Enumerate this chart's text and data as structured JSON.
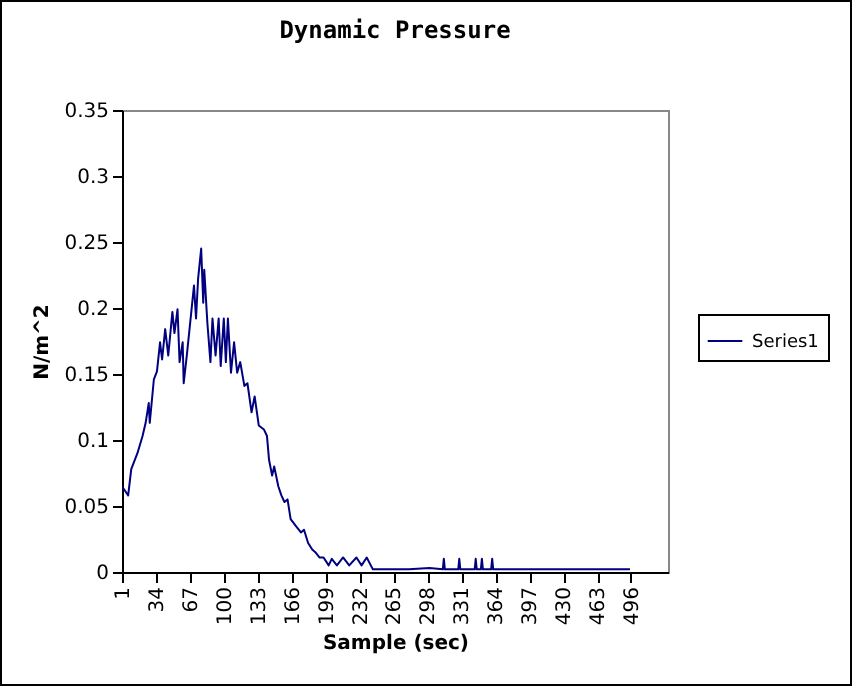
{
  "chart_data": {
    "type": "line",
    "title": "Dynamic Pressure",
    "xlabel": "Sample (sec)",
    "ylabel": "N/m^2",
    "xlim": [
      1,
      532
    ],
    "xticks": [
      1,
      34,
      67,
      100,
      133,
      166,
      199,
      232,
      265,
      298,
      331,
      364,
      397,
      430,
      463,
      496
    ],
    "ylim": [
      0,
      0.35
    ],
    "yticks": [
      0,
      0.05,
      0.1,
      0.15,
      0.2,
      0.25,
      0.3,
      0.35
    ],
    "grid": false,
    "legend": "right",
    "line_style": "solid",
    "marker": "none",
    "series": [
      {
        "name": "Series1",
        "color": "#000080",
        "x": [
          1,
          7,
          10,
          16,
          21,
          24,
          27,
          28,
          32,
          35,
          38,
          40,
          43,
          46,
          50,
          52,
          55,
          57,
          60,
          61,
          64,
          68,
          71,
          73,
          75,
          78,
          80,
          81,
          84,
          87,
          89,
          92,
          95,
          97,
          100,
          102,
          104,
          107,
          110,
          113,
          116,
          120,
          123,
          127,
          130,
          134,
          139,
          142,
          144,
          147,
          149,
          153,
          156,
          159,
          162,
          165,
          170,
          175,
          178,
          182,
          186,
          189,
          193,
          197,
          202,
          205,
          210,
          216,
          222,
          229,
          234,
          239,
          245,
          250,
          280,
          300,
          313,
          314,
          315,
          328,
          329,
          330,
          344,
          345,
          346,
          350,
          351,
          352,
          360,
          361,
          362,
          400,
          450,
          495
        ],
        "values": [
          0.065,
          0.058,
          0.078,
          0.09,
          0.103,
          0.113,
          0.128,
          0.113,
          0.146,
          0.152,
          0.174,
          0.161,
          0.184,
          0.164,
          0.197,
          0.181,
          0.199,
          0.159,
          0.174,
          0.143,
          0.164,
          0.194,
          0.217,
          0.192,
          0.222,
          0.245,
          0.204,
          0.229,
          0.189,
          0.159,
          0.192,
          0.164,
          0.192,
          0.156,
          0.192,
          0.159,
          0.192,
          0.151,
          0.174,
          0.151,
          0.159,
          0.141,
          0.143,
          0.121,
          0.133,
          0.111,
          0.108,
          0.103,
          0.085,
          0.073,
          0.08,
          0.065,
          0.058,
          0.053,
          0.055,
          0.04,
          0.035,
          0.03,
          0.032,
          0.022,
          0.017,
          0.015,
          0.011,
          0.011,
          0.005,
          0.01,
          0.005,
          0.011,
          0.005,
          0.011,
          0.005,
          0.011,
          0.002,
          0.002,
          0.002,
          0.003,
          0.002,
          0.01,
          0.002,
          0.002,
          0.01,
          0.002,
          0.002,
          0.01,
          0.002,
          0.002,
          0.01,
          0.002,
          0.002,
          0.01,
          0.002,
          0.002,
          0.002,
          0.002
        ]
      }
    ]
  }
}
